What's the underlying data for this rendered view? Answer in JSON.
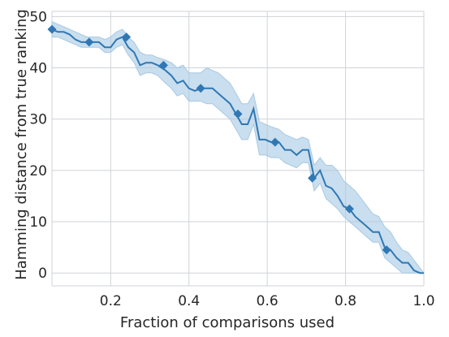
{
  "chart_data": {
    "type": "line",
    "title": "",
    "xlabel": "Fraction of comparisons used",
    "ylabel": "Hamming distance from true ranking",
    "xlim": [
      0.05,
      1.0
    ],
    "ylim": [
      -2.5,
      51
    ],
    "x_ticks": [
      0.2,
      0.4,
      0.6,
      0.8,
      1.0
    ],
    "x_tick_labels": [
      "0.2",
      "0.4",
      "0.6",
      "0.8",
      "1.0"
    ],
    "y_ticks": [
      0,
      10,
      20,
      30,
      40,
      50
    ],
    "y_tick_labels": [
      "0",
      "10",
      "20",
      "30",
      "40",
      "50"
    ],
    "grid": true,
    "legend": "none",
    "colors": {
      "line": "#2f78b4",
      "band": "#a8c9e3",
      "marker": "#2f78b4"
    },
    "series": [
      {
        "x": [
          0.05,
          0.065,
          0.08,
          0.095,
          0.11,
          0.125,
          0.14,
          0.155,
          0.17,
          0.185,
          0.2,
          0.215,
          0.23,
          0.245,
          0.26,
          0.275,
          0.29,
          0.305,
          0.32,
          0.34,
          0.355,
          0.37,
          0.385,
          0.4,
          0.415,
          0.43,
          0.445,
          0.46,
          0.475,
          0.49,
          0.505,
          0.52,
          0.535,
          0.55,
          0.565,
          0.58,
          0.595,
          0.61,
          0.63,
          0.645,
          0.66,
          0.675,
          0.69,
          0.705,
          0.72,
          0.735,
          0.75,
          0.765,
          0.78,
          0.795,
          0.81,
          0.825,
          0.84,
          0.855,
          0.87,
          0.885,
          0.9,
          0.915,
          0.93,
          0.945,
          0.96,
          0.975,
          0.99,
          1.0
        ],
        "y": [
          47.5,
          47,
          47,
          46.5,
          45.5,
          45,
          45,
          45,
          45,
          44,
          44,
          45.5,
          46,
          44,
          43,
          40.5,
          41,
          41,
          40.5,
          39.5,
          38.5,
          37,
          37.5,
          36,
          35.5,
          36,
          36,
          36,
          35,
          34,
          33,
          31,
          29,
          29,
          32,
          26,
          26,
          25.5,
          25.5,
          24,
          24,
          23,
          24,
          24,
          18.5,
          20,
          17,
          16.5,
          15,
          13,
          12.5,
          11,
          10,
          9,
          8,
          8,
          5,
          4.5,
          3,
          2,
          2,
          0.5,
          0,
          0
        ],
        "upper": [
          49,
          48.5,
          48,
          47.5,
          47,
          46.5,
          46,
          46,
          46,
          45.5,
          46,
          47,
          47.5,
          46,
          45,
          43,
          42.5,
          42.5,
          42,
          41.5,
          41,
          40,
          40.5,
          39,
          39,
          39,
          40,
          39.5,
          39,
          38,
          37,
          35,
          33,
          33,
          35,
          29.5,
          29,
          28.5,
          28,
          27,
          26.5,
          26,
          26.5,
          26,
          21,
          22.5,
          21,
          21,
          20,
          18,
          17,
          16,
          14.5,
          13,
          11.5,
          11,
          9,
          8,
          6,
          4.5,
          4,
          2.5,
          1,
          0
        ],
        "lower": [
          46,
          46,
          45.5,
          45,
          44.5,
          44,
          44,
          44,
          44,
          43,
          43,
          44,
          44.5,
          42.5,
          41,
          38.5,
          39,
          39,
          38.5,
          37,
          36,
          34.5,
          35,
          33.5,
          33.5,
          33.5,
          33,
          33,
          32,
          31,
          30,
          28,
          26,
          26,
          29,
          23,
          23,
          22.5,
          22.5,
          21.5,
          21,
          20.5,
          21.5,
          21.5,
          16,
          17.5,
          14.5,
          13.5,
          12.5,
          11,
          10,
          9,
          8,
          7,
          6,
          6,
          3,
          2,
          1,
          0,
          0,
          0,
          0,
          0
        ],
        "markers": [
          {
            "x": 0.05,
            "y": 47.5
          },
          {
            "x": 0.145,
            "y": 45
          },
          {
            "x": 0.24,
            "y": 46
          },
          {
            "x": 0.335,
            "y": 40.5
          },
          {
            "x": 0.43,
            "y": 36
          },
          {
            "x": 0.525,
            "y": 31
          },
          {
            "x": 0.62,
            "y": 25.5
          },
          {
            "x": 0.715,
            "y": 18.5
          },
          {
            "x": 0.81,
            "y": 12.5
          },
          {
            "x": 0.905,
            "y": 4.5
          }
        ]
      }
    ]
  }
}
